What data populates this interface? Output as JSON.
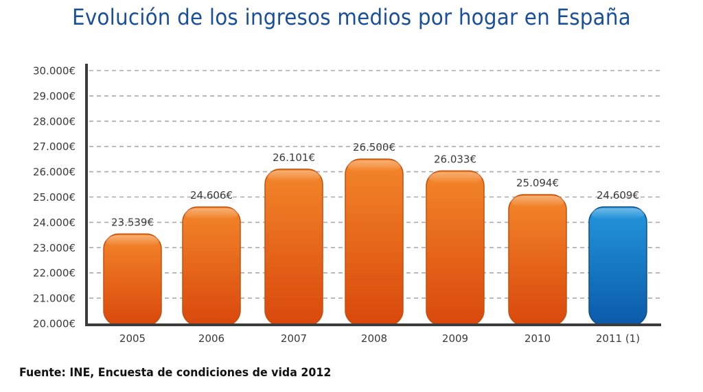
{
  "title": "Evolución de los ingresos medios por hogar en España",
  "source": "Fuente: INE, Encuesta de condiciones de vida 2012",
  "colors": {
    "title": "#1a4f9a",
    "orange_top": "#f3862a",
    "orange_bottom": "#d9480c",
    "orange_stroke": "#c4500f",
    "blue_top": "#2396dc",
    "blue_bottom": "#0b5aa8",
    "blue_stroke": "#0d4f91",
    "axis": "#3c3c3c",
    "grid": "#a9a9a9"
  },
  "chart_data": {
    "type": "bar",
    "title": "Evolución de los ingresos medios por hogar en España",
    "xlabel": "",
    "ylabel": "",
    "categories": [
      "2005",
      "2006",
      "2007",
      "2008",
      "2009",
      "2010",
      "2011 (1)"
    ],
    "values": [
      23539,
      24606,
      26101,
      26500,
      26033,
      25094,
      24609
    ],
    "value_labels": [
      "23.539€",
      "24.606€",
      "26.101€",
      "26.500€",
      "26.033€",
      "25.094€",
      "24.609€"
    ],
    "highlight": [
      false,
      false,
      false,
      false,
      false,
      false,
      true
    ],
    "ylim": [
      20000,
      30000
    ],
    "yticks": [
      20000,
      21000,
      22000,
      23000,
      24000,
      25000,
      26000,
      27000,
      28000,
      29000,
      30000
    ],
    "ytick_labels": [
      "20.000€",
      "21.000€",
      "22.000€",
      "23.000€",
      "24.000€",
      "25.000€",
      "26.000€",
      "27.000€",
      "28.000€",
      "29.000€",
      "30.000€"
    ],
    "grid": true,
    "grid_style": "dashed horizontal",
    "legend": "none",
    "source": "Fuente: INE, Encuesta de condiciones de vida 2012"
  }
}
